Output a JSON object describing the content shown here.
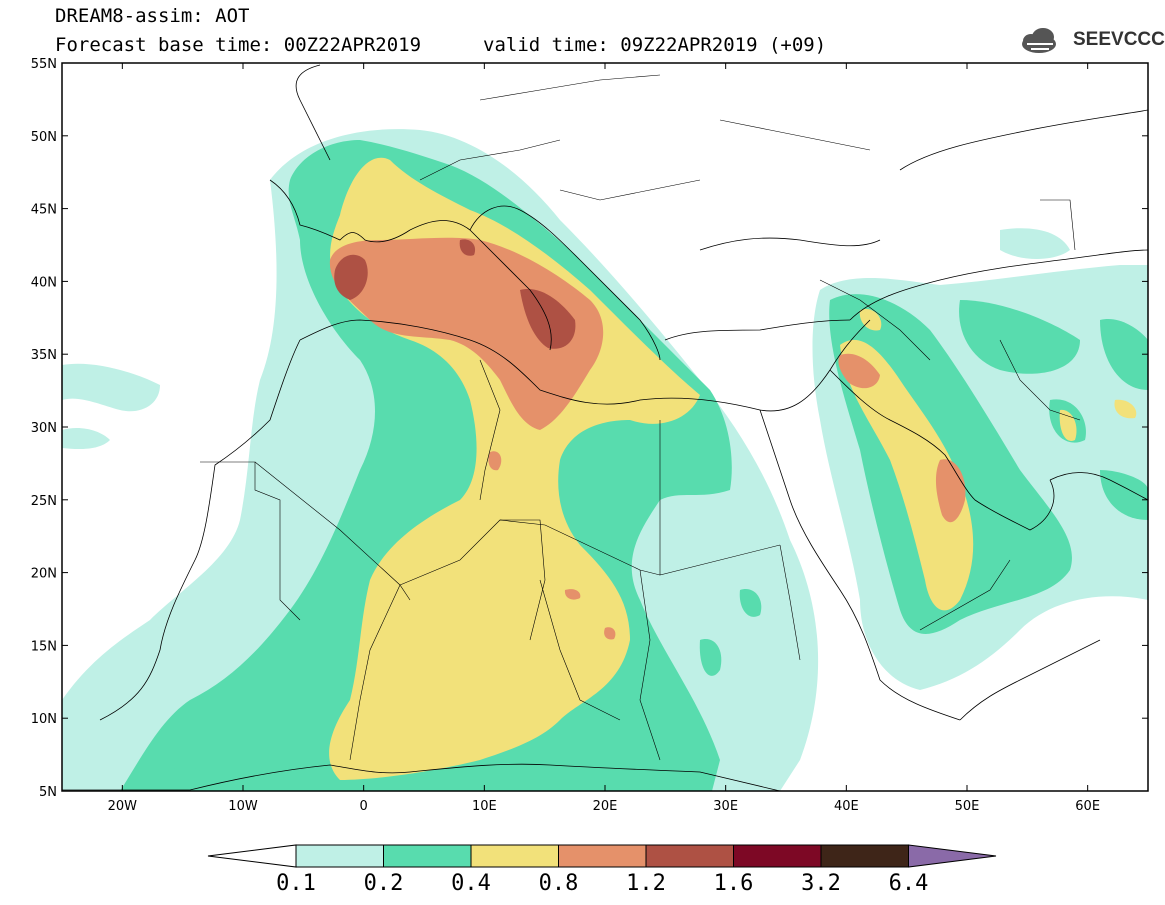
{
  "header": {
    "model_title": "DREAM8-assim: AOT",
    "base_time": "Forecast base time: 00Z22APR2019",
    "valid_time": "valid time: 09Z22APR2019 (+09)",
    "logo_text": "SEEVCCC",
    "logo_icon": "cloud-icon"
  },
  "map": {
    "lat_labels": [
      "55N",
      "50N",
      "45N",
      "40N",
      "35N",
      "30N",
      "25N",
      "20N",
      "15N",
      "10N",
      "5N"
    ],
    "lon_labels": [
      "20W",
      "10W",
      "0",
      "10E",
      "20E",
      "30E",
      "40E",
      "50E",
      "60E"
    ],
    "lon_range": [
      -25,
      65
    ],
    "lat_range": [
      5,
      55
    ]
  },
  "colorbar": {
    "labels": [
      "0.1",
      "0.2",
      "0.4",
      "0.8",
      "1.2",
      "1.6",
      "3.2",
      "6.4"
    ],
    "colors": [
      "#ffffff",
      "#bff0e6",
      "#58dcae",
      "#f2e17a",
      "#e5916a",
      "#ae5144",
      "#7d0825",
      "#3e2518",
      "#8a6aa8"
    ]
  }
}
